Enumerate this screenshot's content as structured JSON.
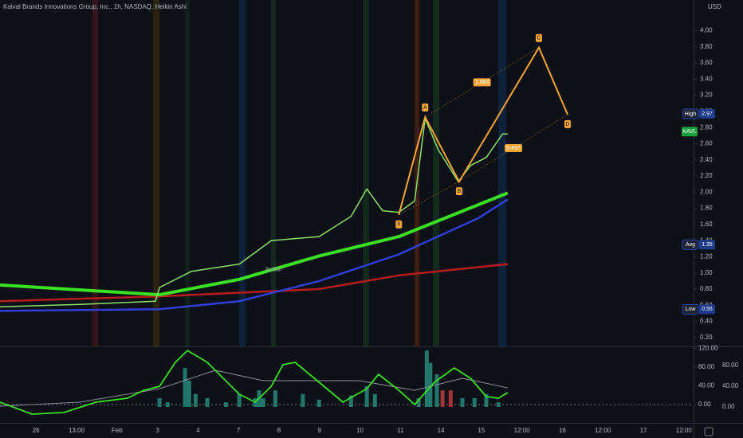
{
  "chart_data": [
    {
      "type": "line",
      "title": "Kaival Brands Innovations Group, Inc., 1h, NASDAQ, Heikin Ashi",
      "currency": "USD",
      "xlim": [
        -0.89,
        16.24
      ],
      "xticks": [
        {
          "value": 0,
          "label": "26"
        },
        {
          "value": 1,
          "label": "13:00"
        },
        {
          "value": 2,
          "label": "Feb"
        },
        {
          "value": 3,
          "label": "3"
        },
        {
          "value": 4,
          "label": "4"
        },
        {
          "value": 5,
          "label": "7"
        },
        {
          "value": 6,
          "label": "8"
        },
        {
          "value": 7,
          "label": "9"
        },
        {
          "value": 8,
          "label": "10"
        },
        {
          "value": 9,
          "label": "11"
        },
        {
          "value": 10,
          "label": "14"
        },
        {
          "value": 11,
          "label": "15"
        },
        {
          "value": 12,
          "label": "12:00"
        },
        {
          "value": 13,
          "label": "16"
        },
        {
          "value": 14,
          "label": "12:00"
        },
        {
          "value": 15,
          "label": "17"
        },
        {
          "value": 16,
          "label": "12:00"
        }
      ],
      "ylim": [
        0.09,
        4.32
      ],
      "yticks": [
        {
          "value": 0.2,
          "label": "0.20"
        },
        {
          "value": 0.4,
          "label": "0.40"
        },
        {
          "value": 0.6,
          "label": "0.60"
        },
        {
          "value": 0.8,
          "label": "0.80"
        },
        {
          "value": 1.0,
          "label": "1.00"
        },
        {
          "value": 1.2,
          "label": "1.20"
        },
        {
          "value": 1.4,
          "label": "1.40"
        },
        {
          "value": 1.6,
          "label": "1.60"
        },
        {
          "value": 1.8,
          "label": "1.80"
        },
        {
          "value": 2.0,
          "label": "2.00"
        },
        {
          "value": 2.2,
          "label": "2.20"
        },
        {
          "value": 2.4,
          "label": "2.40"
        },
        {
          "value": 2.6,
          "label": "2.60"
        },
        {
          "value": 2.8,
          "label": "2.80"
        },
        {
          "value": 3.0,
          "label": "3.00"
        },
        {
          "value": 3.2,
          "label": "3.20"
        },
        {
          "value": 3.4,
          "label": "3.40"
        },
        {
          "value": 3.6,
          "label": "3.60"
        },
        {
          "value": 3.8,
          "label": "3.80"
        },
        {
          "value": 4.0,
          "label": "4.00"
        }
      ],
      "series": [
        {
          "color": "#b71c1c",
          "width": 2.5,
          "x": [
            -0.89,
            3.05,
            6.99,
            8.96,
            11.65
          ],
          "values": [
            0.65,
            0.71,
            0.8,
            0.97,
            1.11
          ]
        },
        {
          "color": "#2f3fd8",
          "width": 2.5,
          "x": [
            -0.89,
            3.05,
            5.02,
            6.99,
            8.96,
            10.93,
            11.65
          ],
          "values": [
            0.53,
            0.55,
            0.65,
            0.9,
            1.23,
            1.68,
            1.91
          ]
        },
        {
          "color": "#3ae022",
          "width": 4,
          "x": [
            -0.89,
            3.05,
            5.02,
            6.99,
            8.96,
            11.65
          ],
          "values": [
            0.85,
            0.73,
            0.92,
            1.21,
            1.45,
            1.99
          ]
        },
        {
          "color": "#8be06a",
          "width": 1.5,
          "x": [
            -0.89,
            1.08,
            2.95,
            3.05,
            3.84,
            5.02,
            5.81,
            6.99,
            7.78,
            8.17,
            8.56,
            8.96,
            9.35,
            9.61,
            9.94,
            10.24,
            10.43,
            10.73,
            11.12,
            11.52,
            11.65
          ],
          "values": [
            0.58,
            0.61,
            0.65,
            0.82,
            1.02,
            1.11,
            1.4,
            1.45,
            1.7,
            2.04,
            1.77,
            1.75,
            1.89,
            2.91,
            2.52,
            2.28,
            2.13,
            2.33,
            2.43,
            2.72,
            2.72
          ]
        }
      ],
      "pattern": {
        "color": "#f7a534",
        "points": [
          {
            "label": "X",
            "x": 8.96,
            "value": 1.72
          },
          {
            "label": "A",
            "x": 9.61,
            "value": 2.93
          },
          {
            "label": "B",
            "x": 10.45,
            "value": 2.13
          },
          {
            "label": "C",
            "x": 12.42,
            "value": 3.79
          },
          {
            "label": "D",
            "x": 13.13,
            "value": 2.96
          }
        ],
        "ratio_labels": [
          "1.884",
          "0.497"
        ]
      },
      "price_labels": [
        {
          "label": "High",
          "value": 2.97
        },
        {
          "label": "KAVL",
          "value": 2.75
        },
        {
          "label": "Avg",
          "value": 1.35
        },
        {
          "label": "Low",
          "value": 0.55
        }
      ],
      "annotation": {
        "text": "Bullish",
        "x": 5.87,
        "value": 1.04
      }
    },
    {
      "type": "line",
      "ylim": [
        -37.4,
        120.9
      ],
      "yticks": [
        {
          "value": 0,
          "label": "0.00"
        },
        {
          "value": 40,
          "label": "40.00"
        },
        {
          "value": 80,
          "label": "80.00"
        },
        {
          "value": 120,
          "label": "120.00"
        }
      ],
      "y2lim": [
        -29.2,
        113.8
      ],
      "y2ticks": [
        {
          "value": 0,
          "label": "0.00"
        },
        {
          "value": 40,
          "label": "40.00"
        },
        {
          "value": 80,
          "label": "80.00"
        }
      ],
      "series": [
        {
          "type": "bar",
          "axis": "y2",
          "x": [
            3.05,
            3.25,
            3.68,
            3.78,
            3.94,
            4.23,
            4.69,
            5.02,
            5.41,
            5.51,
            5.61,
            5.91,
            6.59,
            6.99,
            7.78,
            8.17,
            8.37,
            9.45,
            9.65,
            9.74,
            9.9,
            10.04,
            10.24,
            10.53,
            10.83,
            11.12,
            11.42
          ],
          "values": [
            17,
            9,
            75,
            51,
            25,
            17,
            9,
            25,
            17,
            32,
            17,
            32,
            25,
            14,
            22,
            40,
            25,
            17,
            109,
            85,
            63,
            32,
            32,
            17,
            17,
            25,
            9
          ],
          "colors": [
            "#22786d",
            "#22786d",
            "#22786d",
            "#22786d",
            "#22786d",
            "#22786d",
            "#22786d",
            "#22786d",
            "#22786d",
            "#22786d",
            "#22786d",
            "#22786d",
            "#22786d",
            "#22786d",
            "#22786d",
            "#22786d",
            "#22786d",
            "#22786d",
            "#22786d",
            "#22786d",
            "#22786d",
            "#a3343a",
            "#a3343a",
            "#22786d",
            "#22786d",
            "#22786d",
            "#22786d"
          ]
        },
        {
          "color": "#8a8e98",
          "width": 1,
          "x": [
            -0.89,
            1.08,
            3.05,
            4.43,
            5.61,
            6.59,
            7.97,
            9.35,
            10.53,
            11.65
          ],
          "values": [
            -3.4,
            5.1,
            34.0,
            73.2,
            51.1,
            51.1,
            51.1,
            30.6,
            56.2,
            35.7
          ]
        },
        {
          "color": "#3ae022",
          "width": 1.8,
          "x": [
            -0.89,
            -0.1,
            0.69,
            1.48,
            2.26,
            2.66,
            3.05,
            3.44,
            3.74,
            4.23,
            5.02,
            5.41,
            5.81,
            6.1,
            6.4,
            6.99,
            7.58,
            8.17,
            8.46,
            8.96,
            9.35,
            9.84,
            10.33,
            10.73,
            11.12,
            11.42,
            11.65
          ],
          "values": [
            5.1,
            -20.4,
            -17.0,
            5.1,
            13.6,
            30.6,
            39.1,
            90.2,
            115.7,
            90.2,
            22.1,
            5.1,
            39.1,
            85.1,
            90.2,
            47.7,
            5.1,
            34.0,
            64.7,
            30.6,
            0,
            47.7,
            78.3,
            56.2,
            17.0,
            13.6,
            25.5
          ]
        }
      ]
    }
  ]
}
